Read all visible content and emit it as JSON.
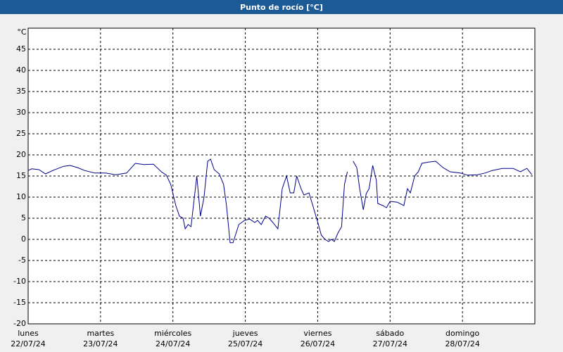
{
  "chart_data": {
    "type": "line",
    "title": "Punto de rocío [°C]",
    "y_unit": "°C",
    "xlim": [
      0,
      7
    ],
    "ylim": [
      -20,
      50
    ],
    "yticks": [
      -20,
      -15,
      -10,
      -5,
      0,
      5,
      10,
      15,
      20,
      25,
      30,
      35,
      40,
      45
    ],
    "xticks": [
      {
        "value": 0,
        "label": [
          "lunes",
          "22/07/24"
        ]
      },
      {
        "value": 1,
        "label": [
          "martes",
          "23/07/24"
        ]
      },
      {
        "value": 2,
        "label": [
          "miércoles",
          "24/07/24"
        ]
      },
      {
        "value": 3,
        "label": [
          "jueves",
          "25/07/24"
        ]
      },
      {
        "value": 4,
        "label": [
          "viernes",
          "26/07/24"
        ]
      },
      {
        "value": 5,
        "label": [
          "sábado",
          "27/07/24"
        ]
      },
      {
        "value": 6,
        "label": [
          "domingo",
          "28/07/24"
        ]
      }
    ],
    "grid": true,
    "x": [
      0,
      0.05,
      0.15,
      0.24,
      0.34,
      0.49,
      0.58,
      0.68,
      0.78,
      0.92,
      1.07,
      1.21,
      1.36,
      1.48,
      1.6,
      1.73,
      1.84,
      1.91,
      1.97,
      2.04,
      2.09,
      2.14,
      2.17,
      2.21,
      2.25,
      2.33,
      2.38,
      2.43,
      2.48,
      2.52,
      2.57,
      2.64,
      2.7,
      2.74,
      2.79,
      2.83,
      2.91,
      2.99,
      3.06,
      3.13,
      3.17,
      3.22,
      3.28,
      3.33,
      3.38,
      3.45,
      3.51,
      3.57,
      3.62,
      3.67,
      3.71,
      3.77,
      3.81,
      3.88,
      3.95,
      4.01,
      4.05,
      4.1,
      4.15,
      4.19,
      4.23,
      4.28,
      4.33,
      4.37,
      4.41,
      4.45,
      4.49,
      4.54,
      4.58,
      4.63,
      4.67,
      4.71,
      4.76,
      4.81,
      4.83,
      4.9,
      4.95,
      5.0,
      5.1,
      5.19,
      5.24,
      5.28,
      5.34,
      5.39,
      5.44,
      5.53,
      5.63,
      5.73,
      5.83,
      5.97,
      6.07,
      6.21,
      6.31,
      6.41,
      6.55,
      6.7,
      6.8,
      6.89,
      6.96
    ],
    "series": [
      {
        "name": "Punto de rocío",
        "color": "#00008b",
        "values": [
          16.3,
          16.7,
          16.5,
          15.5,
          16.3,
          17.3,
          17.5,
          17,
          16.3,
          15.7,
          15.7,
          15.3,
          15.7,
          18,
          17.7,
          17.8,
          16,
          15.2,
          13,
          8,
          5.5,
          5,
          2.5,
          3.5,
          3,
          15,
          5.5,
          10,
          18.5,
          19,
          16.5,
          15.5,
          13,
          8,
          -0.8,
          -0.8,
          3.5,
          4.5,
          4.8,
          4,
          4.5,
          3.5,
          5.5,
          5,
          4,
          2.5,
          12,
          15,
          11,
          11,
          15,
          12,
          10.5,
          11,
          7,
          3.5,
          1,
          0,
          -0.5,
          0,
          -0.5,
          1.5,
          3,
          13,
          16,
          null,
          18.5,
          17,
          12,
          7,
          10.8,
          12,
          17.5,
          14,
          8.5,
          8,
          7.5,
          9,
          8.8,
          8,
          12,
          11,
          15,
          16,
          18,
          18.3,
          18.5,
          17,
          16,
          15.7,
          15.2,
          15.3,
          15.7,
          16.3,
          16.8,
          16.8,
          16,
          16.8,
          15.3
        ]
      }
    ]
  }
}
